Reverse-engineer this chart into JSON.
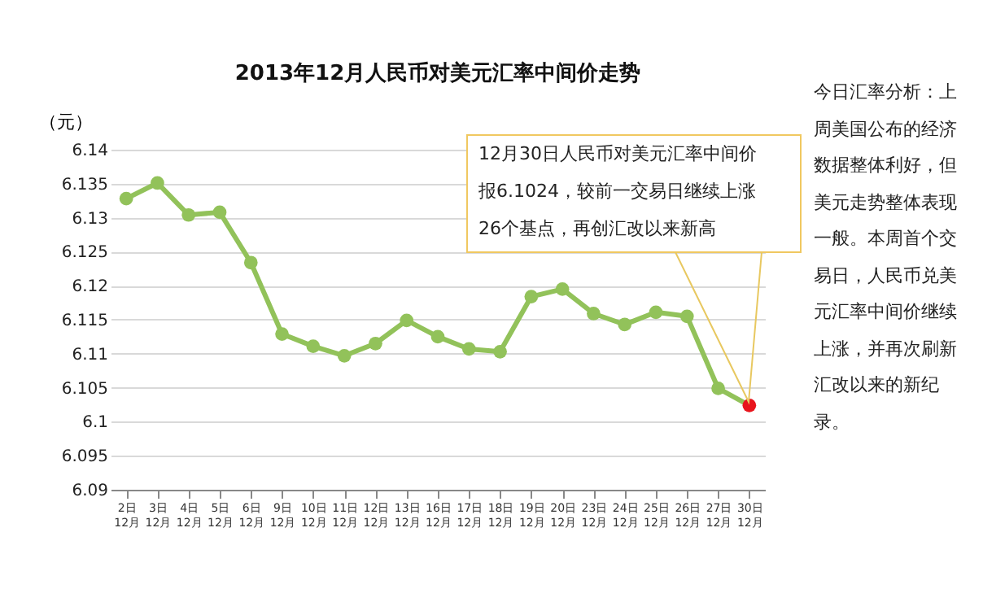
{
  "chart_data": {
    "type": "line",
    "title": "2013年12月人民币对美元汇率中间价走势",
    "ylabel": "（元）",
    "categories": [
      "2日\n12月",
      "3日\n12月",
      "4日\n12月",
      "5日\n12月",
      "6日\n12月",
      "9日\n12月",
      "10日\n12月",
      "11日\n12月",
      "12日\n12月",
      "13日\n12月",
      "16日\n12月",
      "17日\n12月",
      "18日\n12月",
      "19日\n12月",
      "20日\n12月",
      "23日\n12月",
      "24日\n12月",
      "25日\n12月",
      "26日\n12月",
      "27日\n12月",
      "30日\n12月"
    ],
    "series": [
      {
        "color": "#92c25a",
        "colors": [
          "#92c25a",
          "#92c25a",
          "#92c25a",
          "#92c25a",
          "#92c25a",
          "#92c25a",
          "#92c25a",
          "#92c25a",
          "#92c25a",
          "#92c25a",
          "#92c25a",
          "#92c25a",
          "#92c25a",
          "#92c25a",
          "#92c25a",
          "#92c25a",
          "#92c25a",
          "#92c25a",
          "#92c25a",
          "#92c25a",
          "#e8141c"
        ],
        "values": [
          6.1328,
          6.1351,
          6.1304,
          6.1308,
          6.1234,
          6.1129,
          6.1111,
          6.1097,
          6.1115,
          6.1149,
          6.1125,
          6.1107,
          6.1103,
          6.1184,
          6.1195,
          6.1159,
          6.1143,
          6.1161,
          6.1155,
          6.1049,
          6.1024
        ]
      }
    ],
    "ylim": [
      6.09,
      6.14
    ],
    "yticks": [
      6.09,
      6.095,
      6.1,
      6.105,
      6.11,
      6.115,
      6.12,
      6.125,
      6.13,
      6.135,
      6.14
    ],
    "grid": "y",
    "marker": "circle",
    "line_style": "solid",
    "annotations": [
      "12月30日人民币对美元汇率中间价报6.1024，较前一交易日继续上涨26个基点，再创汇改以来新高",
      "今日汇率分析：上周美国公布的经济数据整体利好，但美元走势整体表现一般。本周首个交易日，人民币兑美元汇率中间价继续上涨，并再次刷新汇改以来的新纪录。"
    ]
  }
}
